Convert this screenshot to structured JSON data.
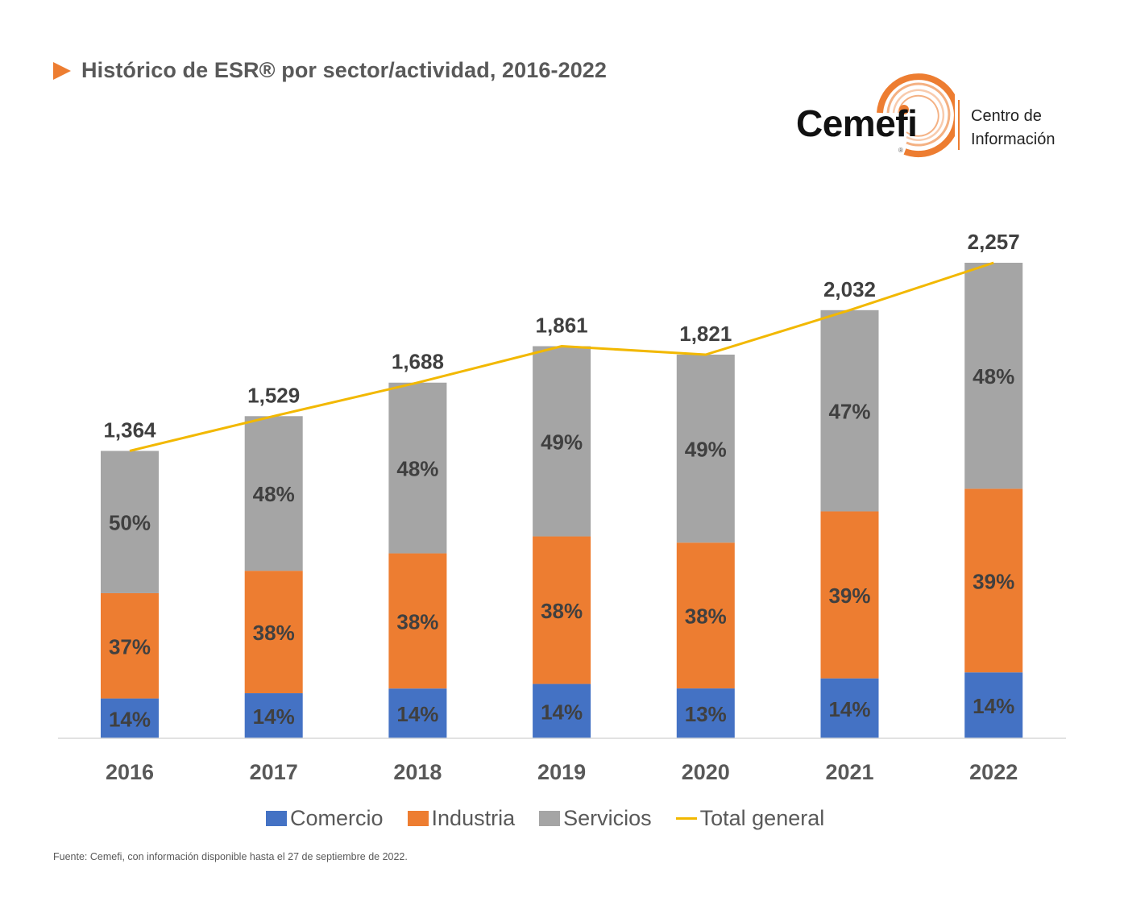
{
  "header": {
    "title": "Histórico de ESR® por sector/actividad, 2016-2022",
    "arrow_icon": "play-triangle-icon"
  },
  "logo": {
    "wordmark": "Cemefi",
    "registered": "®",
    "subtitle_line1": "Centro de",
    "subtitle_line2": "Información",
    "accent_color": "#ED7D31"
  },
  "chart_data": {
    "type": "bar",
    "stacked": true,
    "title": "Histórico de ESR® por sector/actividad, 2016-2022",
    "xlabel": "",
    "ylabel": "",
    "categories": [
      "2016",
      "2017",
      "2018",
      "2019",
      "2020",
      "2021",
      "2022"
    ],
    "series": [
      {
        "name": "Comercio",
        "color": "#4472C4",
        "values_pct": [
          14,
          14,
          14,
          14,
          13,
          14,
          14
        ],
        "labels": [
          "14%",
          "14%",
          "14%",
          "14%",
          "13%",
          "14%",
          "14%"
        ]
      },
      {
        "name": "Industria",
        "color": "#ED7D31",
        "values_pct": [
          37,
          38,
          38,
          38,
          38,
          39,
          39
        ],
        "labels": [
          "37%",
          "38%",
          "38%",
          "38%",
          "38%",
          "39%",
          "39%"
        ]
      },
      {
        "name": "Servicios",
        "color": "#A5A5A5",
        "values_pct": [
          50,
          48,
          48,
          49,
          49,
          47,
          48
        ],
        "labels": [
          "50%",
          "48%",
          "48%",
          "49%",
          "49%",
          "47%",
          "48%"
        ]
      }
    ],
    "line_series": {
      "name": "Total general",
      "color": "#F2B800",
      "values": [
        1364,
        1529,
        1688,
        1861,
        1821,
        2032,
        2257
      ],
      "labels": [
        "1,364",
        "1,529",
        "1,688",
        "1,861",
        "1,821",
        "2,032",
        "2,257"
      ]
    },
    "ylim": [
      0,
      2257
    ],
    "grid": false,
    "y_axis_visible": false,
    "legend_position": "bottom"
  },
  "legend": {
    "items": [
      {
        "label": "Comercio",
        "color": "#4472C4",
        "kind": "box"
      },
      {
        "label": "Industria",
        "color": "#ED7D31",
        "kind": "box"
      },
      {
        "label": "Servicios",
        "color": "#A5A5A5",
        "kind": "box"
      },
      {
        "label": "Total general",
        "color": "#F2B800",
        "kind": "line"
      }
    ]
  },
  "footer": {
    "source": "Fuente: Cemefi, con información disponible hasta el 27  de septiembre de 2022."
  }
}
